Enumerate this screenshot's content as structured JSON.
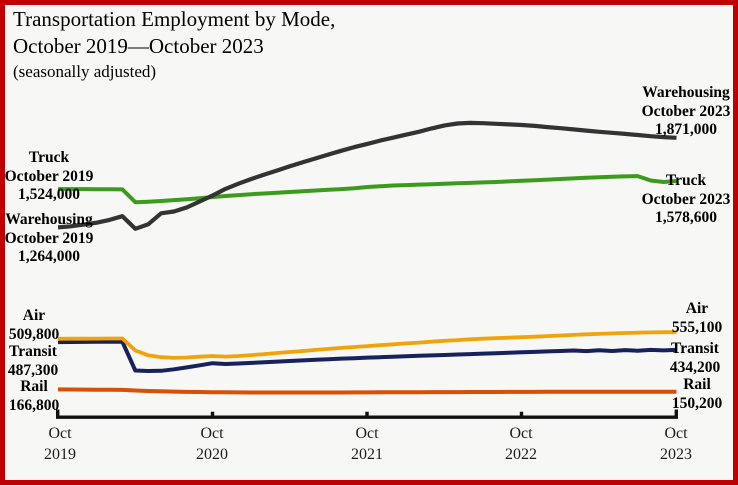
{
  "title": {
    "line1": "Transportation Employment by Mode,",
    "line2": "October 2019—October 2023",
    "line3": "(seasonally adjusted)"
  },
  "colors": {
    "background": "#f7f7f6",
    "border": "#be0000",
    "axis": "#111111",
    "warehousing": "#333333",
    "truck": "#3c9b1d",
    "air": "#f0a30a",
    "transit": "#17215c",
    "rail": "#d94f04"
  },
  "annotations": {
    "truck_oct2019": {
      "lines": [
        "Truck",
        "October 2019",
        "1,524,000"
      ]
    },
    "warehousing_oct2019": {
      "lines": [
        "Warehousing",
        "October 2019",
        "1,264,000"
      ]
    },
    "warehousing_oct2023": {
      "lines": [
        "Warehousing",
        "October 2023",
        "1,871,000"
      ]
    },
    "truck_oct2023": {
      "lines": [
        "Truck",
        "October 2023",
        "1,578,600"
      ]
    },
    "air_oct2019": {
      "lines": [
        "Air",
        "509,800"
      ]
    },
    "transit_oct2019": {
      "lines": [
        "Transit",
        "487,300"
      ]
    },
    "rail_oct2019": {
      "lines": [
        "Rail",
        "166,800"
      ]
    },
    "air_oct2023": {
      "lines": [
        "Air",
        "555,100"
      ]
    },
    "transit_oct2023": {
      "lines": [
        "Transit",
        "434,200"
      ]
    },
    "rail_oct2023": {
      "lines": [
        "Rail",
        "150,200"
      ]
    }
  },
  "x_axis": {
    "ticks": [
      {
        "month": "Oct",
        "year": "2019"
      },
      {
        "month": "Oct",
        "year": "2020"
      },
      {
        "month": "Oct",
        "year": "2021"
      },
      {
        "month": "Oct",
        "year": "2022"
      },
      {
        "month": "Oct",
        "year": "2023"
      }
    ]
  },
  "chart_data": {
    "type": "line",
    "title": "Transportation Employment by Mode, October 2019—October 2023 (seasonally adjusted)",
    "x_interval": "monthly",
    "x_start": "Oct 2019",
    "x_end": "Oct 2023",
    "x_tick_labels": [
      "Oct 2019",
      "Oct 2020",
      "Oct 2021",
      "Oct 2022",
      "Oct 2023"
    ],
    "y_axis_visible": false,
    "grid": false,
    "legend": "inline-annotations",
    "series": [
      {
        "id": "rail",
        "name": "Rail",
        "color": "#d94f04",
        "stroke_width": 4,
        "start_value": 166800,
        "end_value": 150200,
        "values": [
          166800,
          166000,
          165200,
          164500,
          163800,
          163000,
          159000,
          156000,
          153500,
          151500,
          150000,
          148800,
          147800,
          147000,
          146400,
          146000,
          145700,
          145500,
          145400,
          145400,
          145500,
          145700,
          146000,
          146300,
          146600,
          147000,
          147300,
          147600,
          147900,
          148200,
          148500,
          148700,
          148900,
          149100,
          149300,
          149500,
          149700,
          149900,
          150300,
          150600,
          150800,
          150900,
          150900,
          150800,
          150700,
          150600,
          150500,
          150300,
          150200
        ]
      },
      {
        "id": "transit",
        "name": "Transit",
        "color": "#17215c",
        "stroke_width": 4,
        "start_value": 487300,
        "end_value": 434200,
        "values": [
          487300,
          488000,
          488600,
          489200,
          489800,
          489000,
          295000,
          291000,
          293000,
          303000,
          316000,
          330000,
          344000,
          339000,
          342000,
          346000,
          350000,
          355000,
          359000,
          363000,
          367000,
          371000,
          375000,
          378000,
          382000,
          385000,
          388000,
          391000,
          394000,
          397000,
          400000,
          403000,
          406000,
          409000,
          412000,
          415000,
          418000,
          421000,
          424000,
          427000,
          430000,
          426000,
          432000,
          427000,
          433000,
          429000,
          434000,
          431000,
          434200
        ]
      },
      {
        "id": "air",
        "name": "Air",
        "color": "#f0a30a",
        "stroke_width": 3.8,
        "start_value": 509800,
        "end_value": 555100,
        "values": [
          509800,
          510000,
          510400,
          510800,
          511200,
          511500,
          430000,
          398000,
          385000,
          380000,
          383000,
          388000,
          393000,
          389000,
          393000,
          399000,
          406000,
          413000,
          420000,
          427000,
          434000,
          441000,
          448000,
          454000,
          460000,
          466000,
          472000,
          478000,
          484000,
          490000,
          496000,
          501000,
          506000,
          510000,
          514000,
          517000,
          520000,
          524000,
          528000,
          532000,
          536000,
          540000,
          543000,
          546000,
          549000,
          551000,
          553000,
          554000,
          555100
        ]
      },
      {
        "id": "truck",
        "name": "Truck",
        "color": "#3c9b1d",
        "stroke_width": 4,
        "start_value": 1524000,
        "end_value": 1578600,
        "values": [
          1524000,
          1524000,
          1524000,
          1523000,
          1523000,
          1522000,
          1435000,
          1438000,
          1443000,
          1449000,
          1455000,
          1462000,
          1470000,
          1477000,
          1483000,
          1489000,
          1494000,
          1499000,
          1504000,
          1509000,
          1514000,
          1519000,
          1524000,
          1530000,
          1538000,
          1543000,
          1548000,
          1551000,
          1554000,
          1557000,
          1560000,
          1563000,
          1566000,
          1569000,
          1572000,
          1576000,
          1580000,
          1584000,
          1588000,
          1592000,
          1596000,
          1600000,
          1604000,
          1607000,
          1610000,
          1612000,
          1582000,
          1572000,
          1578600
        ]
      },
      {
        "id": "warehousing",
        "name": "Warehousing",
        "color": "#333333",
        "stroke_width": 4.2,
        "start_value": 1264000,
        "end_value": 1871000,
        "values": [
          1264000,
          1272000,
          1283000,
          1296000,
          1315000,
          1340000,
          1255000,
          1285000,
          1360000,
          1372000,
          1400000,
          1440000,
          1480000,
          1525000,
          1560000,
          1592000,
          1622000,
          1650000,
          1678000,
          1705000,
          1732000,
          1758000,
          1784000,
          1808000,
          1830000,
          1852000,
          1872000,
          1892000,
          1912000,
          1935000,
          1955000,
          1968000,
          1972000,
          1970000,
          1966000,
          1962000,
          1958000,
          1952000,
          1944000,
          1936000,
          1928000,
          1920000,
          1912000,
          1905000,
          1898000,
          1890000,
          1882000,
          1876000,
          1871000
        ]
      }
    ]
  }
}
